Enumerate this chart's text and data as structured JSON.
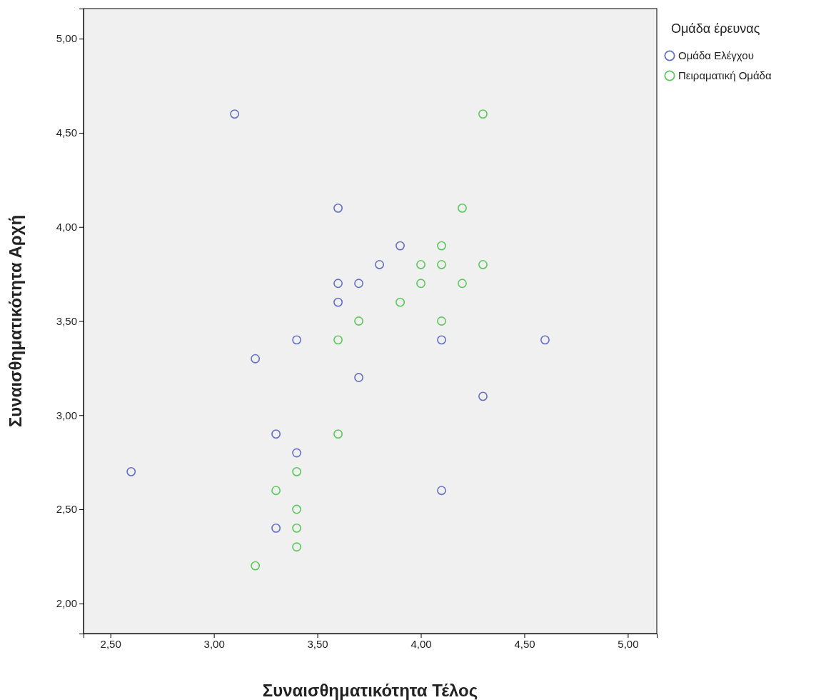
{
  "chart_data": {
    "type": "scatter",
    "xlabel": "Συναισθηματικότητα Τέλος",
    "ylabel": "Συναισθηματικότητα Αρχή",
    "legend_title": "Ομάδα έρευνας",
    "legend": "top right",
    "marker": "circle",
    "grid": false,
    "xlim": [
      2.37,
      5.14
    ],
    "ylim": [
      1.84,
      5.16
    ],
    "xticks": [
      {
        "value": 2.5,
        "label": "2,50"
      },
      {
        "value": 3,
        "label": "3,00"
      },
      {
        "value": 3.5,
        "label": "3,50"
      },
      {
        "value": 4,
        "label": "4,00"
      },
      {
        "value": 4.5,
        "label": "4,50"
      },
      {
        "value": 5,
        "label": "5,00"
      }
    ],
    "yticks": [
      {
        "value": 2,
        "label": "2,00"
      },
      {
        "value": 2.5,
        "label": "2,50"
      },
      {
        "value": 3,
        "label": "3,00"
      },
      {
        "value": 3.5,
        "label": "3,50"
      },
      {
        "value": 4,
        "label": "4,00"
      },
      {
        "value": 4.5,
        "label": "4,50"
      },
      {
        "value": 5,
        "label": "5,00"
      }
    ],
    "series": [
      {
        "name": "Ομάδα Ελέγχου",
        "color": "#6470c0",
        "x": [
          3.1,
          3.6,
          3.9,
          3.8,
          3.6,
          3.7,
          3.6,
          3.4,
          3.2,
          4.1,
          4.6,
          3.7,
          4.3,
          3.3,
          3.4,
          2.6,
          4.1,
          3.3
        ],
        "values": [
          4.6,
          4.1,
          3.9,
          3.8,
          3.7,
          3.7,
          3.6,
          3.4,
          3.3,
          3.4,
          3.4,
          3.2,
          3.1,
          2.9,
          2.8,
          2.7,
          2.6,
          2.4
        ]
      },
      {
        "name": "Πειραματική Ομάδα",
        "color": "#5cc85c",
        "x": [
          4.3,
          4.2,
          4.1,
          4.0,
          4.1,
          4.3,
          4.0,
          4.2,
          3.9,
          3.7,
          4.1,
          3.6,
          3.6,
          3.4,
          3.3,
          3.4,
          3.4,
          3.4,
          3.2
        ],
        "values": [
          4.6,
          4.1,
          3.9,
          3.8,
          3.8,
          3.8,
          3.7,
          3.7,
          3.6,
          3.5,
          3.5,
          3.4,
          2.9,
          2.7,
          2.6,
          2.5,
          2.4,
          2.3,
          2.2
        ]
      }
    ]
  }
}
